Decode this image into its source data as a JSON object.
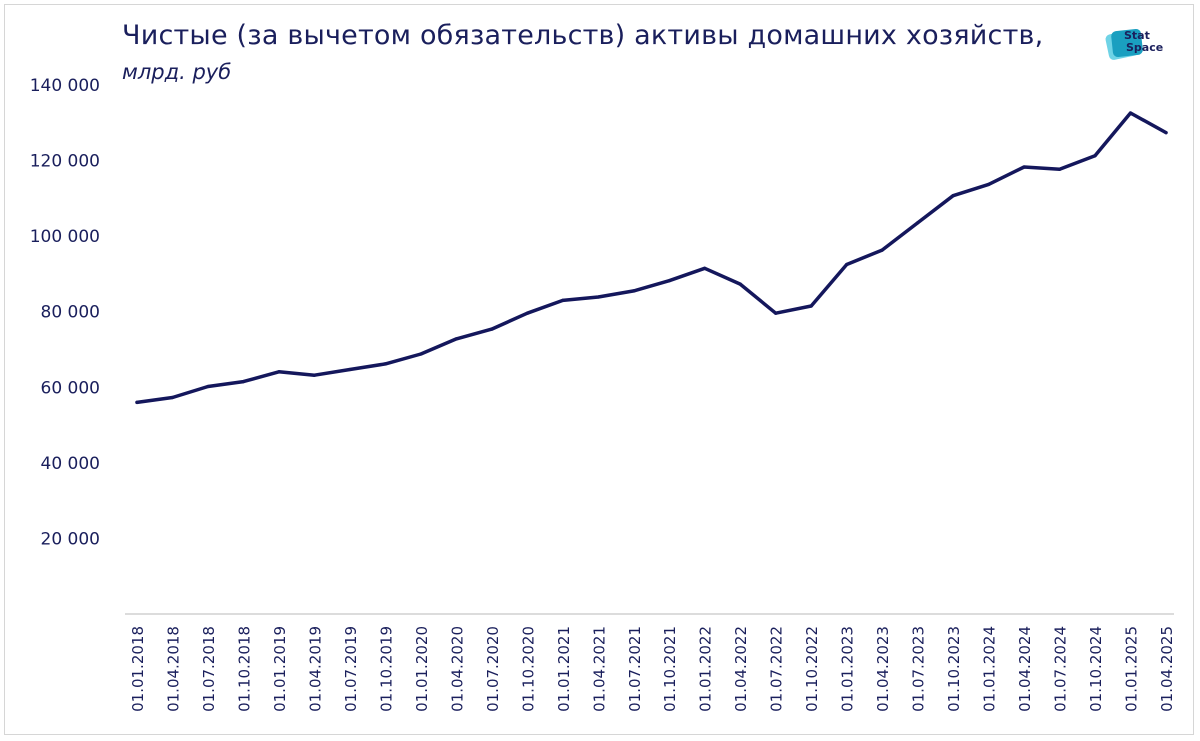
{
  "logo": {
    "line1": "Stat",
    "line2": "Space"
  },
  "colors": {
    "line": "#14175c",
    "text": "#1a1f5c",
    "axis": "#c8c8c8",
    "logo_main": "#1a9fc0",
    "logo_accent": "#6fd3e6"
  },
  "chart_data": {
    "type": "line",
    "title": "Чистые (за вычетом обязательств) активы домашних хозяйств,",
    "subtitle": "млрд. руб",
    "xlabel": "",
    "ylabel": "",
    "ylim": [
      0,
      140000
    ],
    "yticks": [
      20000,
      40000,
      60000,
      80000,
      100000,
      120000,
      140000
    ],
    "ytick_labels": [
      "20 000",
      "40 000",
      "60 000",
      "80 000",
      "100 000",
      "120 000",
      "140 000"
    ],
    "grid": false,
    "legend": "none",
    "categories": [
      "01.01.2018",
      "01.04.2018",
      "01.07.2018",
      "01.10.2018",
      "01.01.2019",
      "01.04.2019",
      "01.07.2019",
      "01.10.2019",
      "01.01.2020",
      "01.04.2020",
      "01.07.2020",
      "01.10.2020",
      "01.01.2021",
      "01.04.2021",
      "01.07.2021",
      "01.10.2021",
      "01.01.2022",
      "01.04.2022",
      "01.07.2022",
      "01.10.2022",
      "01.01.2023",
      "01.04.2023",
      "01.07.2023",
      "01.10.2023",
      "01.01.2024",
      "01.04.2024",
      "01.07.2024",
      "01.10.2024",
      "01.01.2025",
      "01.04.2025"
    ],
    "series": [
      {
        "values": [
          56000,
          57300,
          60200,
          61500,
          64100,
          63200,
          64700,
          66200,
          68800,
          72800,
          75400,
          79600,
          83000,
          83900,
          85500,
          88200,
          91500,
          87300,
          79600,
          81500,
          92500,
          96300,
          103500,
          110700,
          113700,
          118300,
          117700,
          121300,
          132600,
          127400
        ]
      }
    ]
  }
}
